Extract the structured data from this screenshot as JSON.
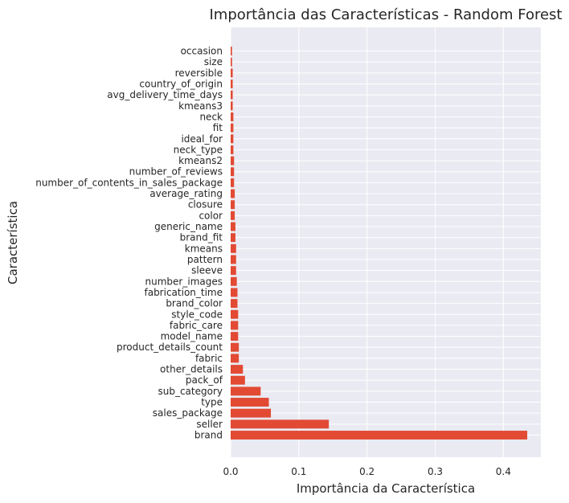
{
  "chart_data": {
    "type": "bar",
    "orientation": "horizontal",
    "title": "Importância das Características - Random Forest",
    "xlabel": "Importância da Característica",
    "ylabel": "Característica",
    "xlim": [
      0,
      0.455
    ],
    "xticks": [
      0.0,
      0.1,
      0.2,
      0.3,
      0.4
    ],
    "xtick_labels": [
      "0.0",
      "0.1",
      "0.2",
      "0.3",
      "0.4"
    ],
    "grid": true,
    "bar_color": "#e24a33",
    "background_color": "#eaeaf2",
    "categories": [
      "brand",
      "seller",
      "sales_package",
      "type",
      "sub_category",
      "pack_of",
      "other_details",
      "fabric",
      "product_details_count",
      "model_name",
      "fabric_care",
      "style_code",
      "brand_color",
      "fabrication_time",
      "number_images",
      "sleeve",
      "pattern",
      "kmeans",
      "brand_fit",
      "generic_name",
      "color",
      "closure",
      "average_rating",
      "number_of_contents_in_sales_package",
      "number_of_reviews",
      "kmeans2",
      "neck_type",
      "ideal_for",
      "fit",
      "neck",
      "kmeans3",
      "avg_delivery_time_days",
      "country_of_origin",
      "reversible",
      "size",
      "occasion"
    ],
    "values": [
      0.435,
      0.144,
      0.059,
      0.056,
      0.044,
      0.021,
      0.018,
      0.012,
      0.012,
      0.011,
      0.011,
      0.011,
      0.01,
      0.01,
      0.009,
      0.008,
      0.008,
      0.008,
      0.007,
      0.007,
      0.006,
      0.006,
      0.006,
      0.005,
      0.005,
      0.005,
      0.004,
      0.004,
      0.004,
      0.004,
      0.003,
      0.003,
      0.003,
      0.003,
      0.002,
      0.002
    ]
  }
}
